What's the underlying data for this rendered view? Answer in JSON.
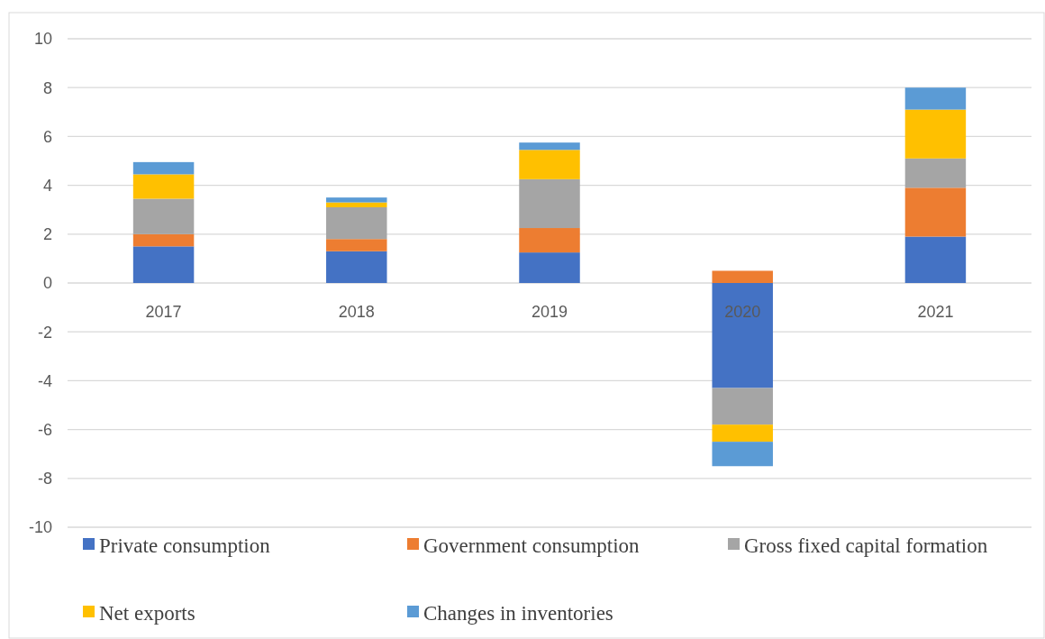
{
  "chart_data": {
    "type": "bar",
    "stacked": true,
    "categories": [
      "2017",
      "2018",
      "2019",
      "2020",
      "2021"
    ],
    "series": [
      {
        "name": "Private consumption",
        "color": "#4472c4",
        "values": [
          1.5,
          1.3,
          1.25,
          -4.3,
          1.9
        ]
      },
      {
        "name": "Government consumption",
        "color": "#ed7d31",
        "values": [
          0.5,
          0.5,
          1.0,
          0.5,
          2.0
        ]
      },
      {
        "name": "Gross fixed capital formation",
        "color": "#a5a5a5",
        "values": [
          1.45,
          1.3,
          2.0,
          -1.5,
          1.2
        ]
      },
      {
        "name": "Net exports",
        "color": "#ffc000",
        "values": [
          1.0,
          0.2,
          1.2,
          -0.7,
          2.0
        ]
      },
      {
        "name": "Changes in inventories",
        "color": "#5b9bd5",
        "values": [
          0.5,
          0.2,
          0.3,
          -1.0,
          0.9
        ]
      }
    ],
    "ylim": [
      -10,
      10
    ],
    "yticks": [
      -10,
      -8,
      -6,
      -4,
      -2,
      0,
      2,
      4,
      6,
      8,
      10
    ],
    "grid": "y",
    "legend": "bottom"
  }
}
